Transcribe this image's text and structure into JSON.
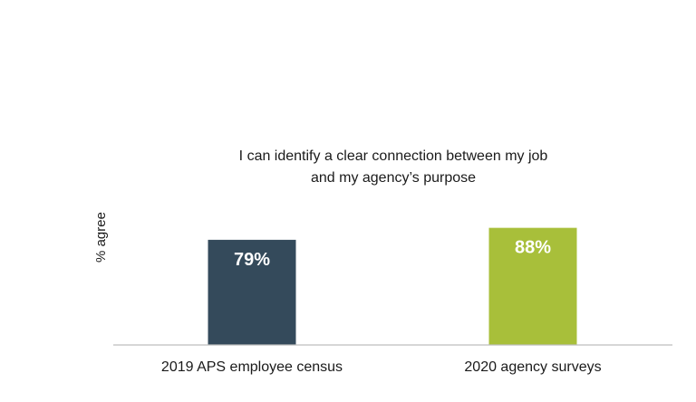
{
  "chart_data": {
    "type": "bar",
    "title_lines": [
      "I can identify a clear connection between my job",
      "and my agency’s purpose"
    ],
    "ylabel": "% agree",
    "xlabel": "",
    "categories": [
      "2019 APS employee census",
      "2020 agency surveys"
    ],
    "values": [
      79,
      88
    ],
    "data_labels": [
      "79%",
      "88%"
    ],
    "colors": [
      "#344a5b",
      "#a8bf3a"
    ],
    "ylim": [
      0,
      100
    ],
    "grid": false,
    "legend": "none"
  }
}
